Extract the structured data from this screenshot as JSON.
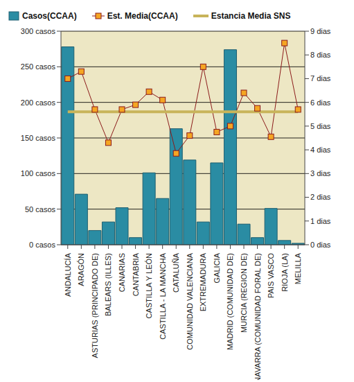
{
  "chart_data": {
    "type": "bar",
    "categories": [
      "ANDALUCÍA",
      "ARAGÓN",
      "ASTURIAS (PRINCIPADO DE)",
      "BALEARS (ILLES)",
      "CANARIAS",
      "CANTABRIA",
      "CASTILLA Y LEÓN",
      "CASTILLA - LA MANCHA",
      "CATALUÑA",
      "COMUNIDAD VALENCIANA",
      "EXTREMADURA",
      "GALICIA",
      "MADRID (COMUNIDAD DE)",
      "MURCIA (REGION DE)",
      "NAVARRA (COMUNIDAD FORAL DE)",
      "PAIS VASCO",
      "RIOJA (LA)",
      "MELILLA"
    ],
    "series": [
      {
        "name": "Casos(CCAA)",
        "type": "bar",
        "color": "#2a8ca3",
        "values": [
          278,
          71,
          20,
          32,
          52,
          10,
          101,
          65,
          163,
          119,
          32,
          115,
          274,
          29,
          10,
          51,
          6,
          2
        ]
      },
      {
        "name": "Est. Media(CCAA)",
        "type": "line",
        "axis": "y2",
        "color": "#8b1a1a",
        "marker": "square",
        "values": [
          7.0,
          7.3,
          5.7,
          4.3,
          5.7,
          5.9,
          6.45,
          6.1,
          3.85,
          4.6,
          7.5,
          4.75,
          5.0,
          6.4,
          5.75,
          4.55,
          8.5,
          5.7
        ]
      },
      {
        "name": "Estancia Media SNS",
        "type": "line",
        "axis": "y2",
        "color": "#c8b45a",
        "marker": "none",
        "values": [
          5.6,
          5.6,
          5.6,
          5.6,
          5.6,
          5.6,
          5.6,
          5.6,
          5.6,
          5.6,
          5.6,
          5.6,
          5.6,
          5.6,
          5.6,
          5.6,
          5.6,
          5.6
        ]
      }
    ],
    "ylim": [
      0,
      300
    ],
    "yticks": [
      {
        "value": 0,
        "label": "0 casos"
      },
      {
        "value": 50,
        "label": "50 casos"
      },
      {
        "value": 100,
        "label": "100 casos"
      },
      {
        "value": 150,
        "label": "150 casos"
      },
      {
        "value": 200,
        "label": "200 casos"
      },
      {
        "value": 250,
        "label": "250 casos"
      },
      {
        "value": 300,
        "label": "300 casos"
      }
    ],
    "y2lim": [
      0,
      9
    ],
    "y2ticks": [
      {
        "value": 0,
        "label": "0 dias"
      },
      {
        "value": 1,
        "label": "1 dias"
      },
      {
        "value": 2,
        "label": "2 dias"
      },
      {
        "value": 3,
        "label": "3 dias"
      },
      {
        "value": 4,
        "label": "4 dias"
      },
      {
        "value": 5,
        "label": "5 dias"
      },
      {
        "value": 6,
        "label": "6 dias"
      },
      {
        "value": 7,
        "label": "7 dias"
      },
      {
        "value": 8,
        "label": "8 dias"
      },
      {
        "value": 9,
        "label": "9 dias"
      }
    ],
    "grid": true,
    "legend": "top"
  }
}
